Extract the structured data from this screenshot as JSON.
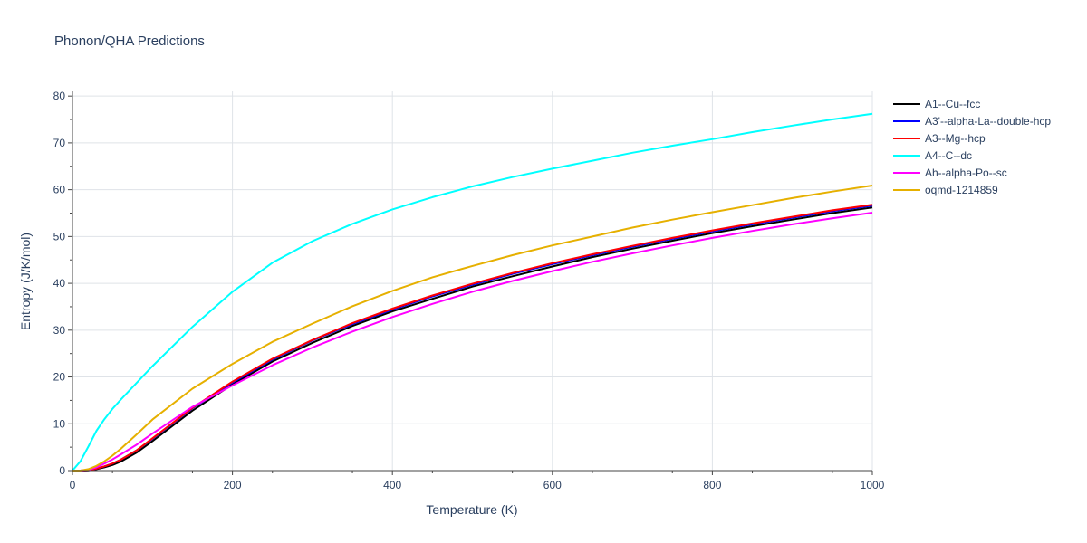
{
  "chart_data": {
    "type": "line",
    "title": "Phonon/QHA Predictions",
    "xlabel": "Temperature (K)",
    "ylabel": "Entropy (J/K/mol)",
    "xlim": [
      0,
      1000
    ],
    "ylim": [
      0,
      81
    ],
    "xticks": [
      0,
      200,
      400,
      600,
      800,
      1000
    ],
    "yticks": [
      0,
      10,
      20,
      30,
      40,
      50,
      60,
      70,
      80
    ],
    "grid": true,
    "legend_position": "right",
    "x": [
      0,
      10,
      20,
      30,
      40,
      50,
      60,
      80,
      100,
      150,
      200,
      250,
      300,
      350,
      400,
      450,
      500,
      550,
      600,
      650,
      700,
      750,
      800,
      850,
      900,
      950,
      1000
    ],
    "series": [
      {
        "name": "A1--Cu--fcc",
        "color": "#000000",
        "values": [
          0,
          0,
          0.05,
          0.3,
          0.7,
          1.2,
          1.9,
          3.8,
          6.3,
          12.8,
          18.4,
          23.3,
          27.3,
          30.9,
          34.0,
          36.7,
          39.3,
          41.5,
          43.6,
          45.6,
          47.4,
          49.1,
          50.7,
          52.2,
          53.6,
          55.0,
          56.2
        ]
      },
      {
        "name": "A3'--alpha-La--double-hcp",
        "color": "#0000ff",
        "values": [
          0,
          0,
          0.1,
          0.4,
          0.9,
          1.5,
          2.3,
          4.3,
          6.8,
          13.3,
          18.8,
          23.7,
          27.8,
          31.3,
          34.4,
          37.2,
          39.7,
          42.0,
          44.1,
          46.0,
          47.8,
          49.5,
          51.1,
          52.6,
          54.0,
          55.4,
          56.6
        ]
      },
      {
        "name": "A3--Mg--hcp",
        "color": "#ff0000",
        "values": [
          0,
          0,
          0.1,
          0.4,
          0.9,
          1.5,
          2.3,
          4.3,
          6.9,
          13.4,
          19.0,
          23.9,
          27.9,
          31.5,
          34.6,
          37.4,
          39.9,
          42.2,
          44.3,
          46.2,
          48.0,
          49.7,
          51.3,
          52.8,
          54.2,
          55.6,
          56.8
        ]
      },
      {
        "name": "A4--C--dc",
        "color": "#00ffff",
        "values": [
          0,
          2.0,
          5.2,
          8.5,
          11.0,
          13.2,
          15.1,
          18.7,
          22.3,
          30.7,
          38.2,
          44.4,
          49.0,
          52.7,
          55.8,
          58.4,
          60.7,
          62.7,
          64.5,
          66.2,
          67.9,
          69.4,
          70.8,
          72.3,
          73.7,
          75.0,
          76.2
        ]
      },
      {
        "name": "Ah--alpha-Po--sc",
        "color": "#ff00ff",
        "values": [
          0,
          0,
          0.2,
          0.7,
          1.5,
          2.4,
          3.4,
          5.5,
          7.9,
          13.6,
          18.2,
          22.5,
          26.3,
          29.7,
          32.8,
          35.6,
          38.2,
          40.5,
          42.6,
          44.6,
          46.4,
          48.1,
          49.7,
          51.2,
          52.6,
          53.9,
          55.1
        ]
      },
      {
        "name": "oqmd-1214859",
        "color": "#e6b000",
        "values": [
          0,
          0,
          0.3,
          1.0,
          2.0,
          3.2,
          4.6,
          7.7,
          10.9,
          17.5,
          22.8,
          27.5,
          31.4,
          35.1,
          38.4,
          41.3,
          43.7,
          46.0,
          48.1,
          50.0,
          51.9,
          53.6,
          55.2,
          56.7,
          58.2,
          59.6,
          60.9
        ]
      }
    ]
  }
}
